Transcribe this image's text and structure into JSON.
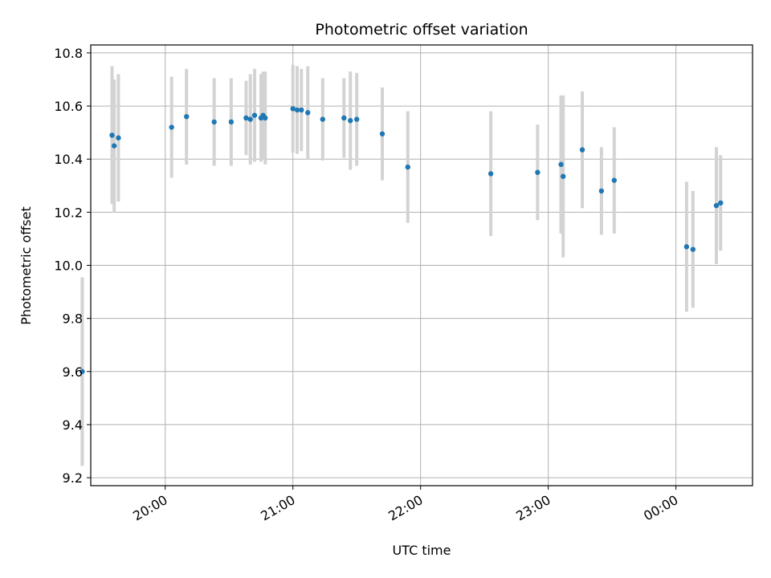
{
  "chart_data": {
    "type": "scatter",
    "title": "Photometric offset variation",
    "xlabel": "UTC time",
    "ylabel": "Photometric offset",
    "x_tick_labels": [
      "20:00",
      "21:00",
      "22:00",
      "23:00",
      "00:00"
    ],
    "y_tick_labels": [
      "9.2",
      "9.4",
      "9.6",
      "9.8",
      "10.0",
      "10.2",
      "10.4",
      "10.6",
      "10.8"
    ],
    "xlim": [
      "19:25",
      "00:36"
    ],
    "ylim": [
      9.17,
      10.83
    ],
    "grid": true,
    "colors": {
      "points": "#1f77b4",
      "error_bars": "#d3d3d3",
      "grid": "#b0b0b0",
      "axes": "#000000"
    },
    "series": [
      {
        "points": [
          {
            "x": "19:21",
            "y": 9.6,
            "err": 0.355
          },
          {
            "x": "19:35",
            "y": 10.49,
            "err": 0.26
          },
          {
            "x": "19:36",
            "y": 10.45,
            "err": 0.25
          },
          {
            "x": "19:38",
            "y": 10.48,
            "err": 0.24
          },
          {
            "x": "20:03",
            "y": 10.52,
            "err": 0.19
          },
          {
            "x": "20:10",
            "y": 10.56,
            "err": 0.18
          },
          {
            "x": "20:23",
            "y": 10.54,
            "err": 0.165
          },
          {
            "x": "20:31",
            "y": 10.54,
            "err": 0.165
          },
          {
            "x": "20:38",
            "y": 10.555,
            "err": 0.14
          },
          {
            "x": "20:40",
            "y": 10.55,
            "err": 0.17
          },
          {
            "x": "20:42",
            "y": 10.565,
            "err": 0.175
          },
          {
            "x": "20:45",
            "y": 10.555,
            "err": 0.165
          },
          {
            "x": "20:46",
            "y": 10.565,
            "err": 0.165
          },
          {
            "x": "20:47",
            "y": 10.555,
            "err": 0.175
          },
          {
            "x": "21:00",
            "y": 10.59,
            "err": 0.165
          },
          {
            "x": "21:02",
            "y": 10.585,
            "err": 0.165
          },
          {
            "x": "21:04",
            "y": 10.585,
            "err": 0.155
          },
          {
            "x": "21:07",
            "y": 10.575,
            "err": 0.175
          },
          {
            "x": "21:14",
            "y": 10.55,
            "err": 0.155
          },
          {
            "x": "21:24",
            "y": 10.555,
            "err": 0.15
          },
          {
            "x": "21:27",
            "y": 10.545,
            "err": 0.185
          },
          {
            "x": "21:30",
            "y": 10.55,
            "err": 0.175
          },
          {
            "x": "21:42",
            "y": 10.495,
            "err": 0.175
          },
          {
            "x": "21:54",
            "y": 10.37,
            "err": 0.21
          },
          {
            "x": "22:33",
            "y": 10.345,
            "err": 0.235
          },
          {
            "x": "22:55",
            "y": 10.35,
            "err": 0.18
          },
          {
            "x": "23:06",
            "y": 10.38,
            "err": 0.26
          },
          {
            "x": "23:07",
            "y": 10.335,
            "err": 0.305
          },
          {
            "x": "23:16",
            "y": 10.435,
            "err": 0.22
          },
          {
            "x": "23:25",
            "y": 10.28,
            "err": 0.165
          },
          {
            "x": "23:31",
            "y": 10.32,
            "err": 0.2
          },
          {
            "x": "00:05",
            "y": 10.07,
            "err": 0.245
          },
          {
            "x": "00:08",
            "y": 10.06,
            "err": 0.22
          },
          {
            "x": "00:19",
            "y": 10.225,
            "err": 0.22
          },
          {
            "x": "00:21",
            "y": 10.235,
            "err": 0.18
          }
        ]
      }
    ]
  }
}
